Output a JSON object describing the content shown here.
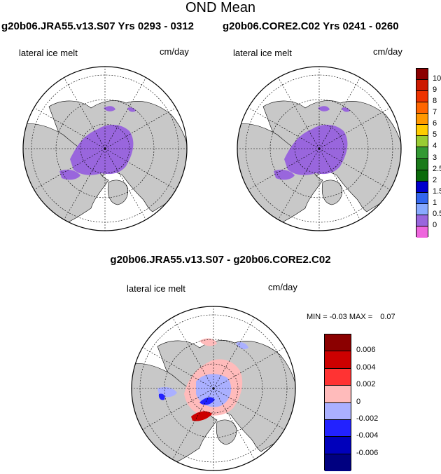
{
  "title": "OND Mean",
  "panels": {
    "left": {
      "run": "g20b06.JRA55.v13.S07  Yrs 0293 - 0312",
      "variable": "lateral ice melt",
      "units": "cm/day"
    },
    "right": {
      "run": "g20b06.CORE2.C02  Yrs 0241 - 0260",
      "variable": "lateral ice melt",
      "units": "cm/day"
    },
    "diff": {
      "title": "g20b06.JRA55.v13.S07 - g20b06.CORE2.C02",
      "variable": "lateral ice melt",
      "units": "cm/day",
      "min_label": "MIN = ",
      "min_value": "-0.03",
      "max_label": "MAX = ",
      "max_value": "0.07"
    }
  },
  "colorbar_main": {
    "labels": [
      "10",
      "9",
      "8",
      "7",
      "6",
      "5",
      "4",
      "3",
      "2.5",
      "2",
      "1.5",
      "1",
      "0.5",
      "0"
    ],
    "colors": [
      "#8b0000",
      "#cc1a00",
      "#ee3300",
      "#ff6600",
      "#ff9900",
      "#ffcc00",
      "#99cc33",
      "#339933",
      "#1a7a1a",
      "#0a6a0a",
      "#0000cc",
      "#3366ee",
      "#88aaff",
      "#9966dd",
      "#ee66dd"
    ]
  },
  "colorbar_diff": {
    "labels": [
      "0.006",
      "0.004",
      "0.002",
      "0",
      "-0.002",
      "-0.004",
      "-0.006"
    ],
    "colors": [
      "#8b0000",
      "#cc0000",
      "#ff3333",
      "#ffbbbb",
      "#aab0ff",
      "#2222ff",
      "#0000bb",
      "#000080"
    ]
  },
  "colors": {
    "land": "#c8c8c8",
    "ocean": "#ffffff",
    "field": "#9966dd",
    "diff_positive": "#ffbbbb",
    "diff_negative": "#aab0ff"
  }
}
